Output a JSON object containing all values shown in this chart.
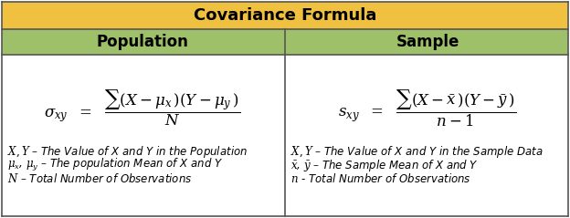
{
  "title": "Covariance Formula",
  "title_bg": "#F0C040",
  "header_bg": "#9DC068",
  "cell_bg": "#FFFFFF",
  "border_color": "#555555",
  "col1_header": "Population",
  "col2_header": "Sample",
  "pop_formula_left": "$\\sigma_{xy}$",
  "pop_formula_right": "$\\dfrac{\\sum(X-\\mu_x\\,)(Y-\\mu_y\\,)}{N}$",
  "samp_formula_left": "$s_{xy}$",
  "samp_formula_right": "$\\dfrac{\\sum(X-\\bar{x}\\,)(Y-\\bar{y}\\,)}{n-1}$",
  "pop_notes": [
    "X, Y – The Value of X and Y in the Population",
    "μ$_x$, μ$_y$ – The population Mean of X and Y",
    "N – Total Number of Observations"
  ],
  "samp_notes": [
    "X, Y – The Value of X and Y in the Sample Data",
    "$\\bar{x}$, $\\bar{y}$ – The Sample Mean of X and Y",
    "n - Total Number of Observations"
  ],
  "title_fontsize": 13,
  "header_fontsize": 12,
  "formula_fontsize": 12,
  "notes_fontsize": 8.5
}
